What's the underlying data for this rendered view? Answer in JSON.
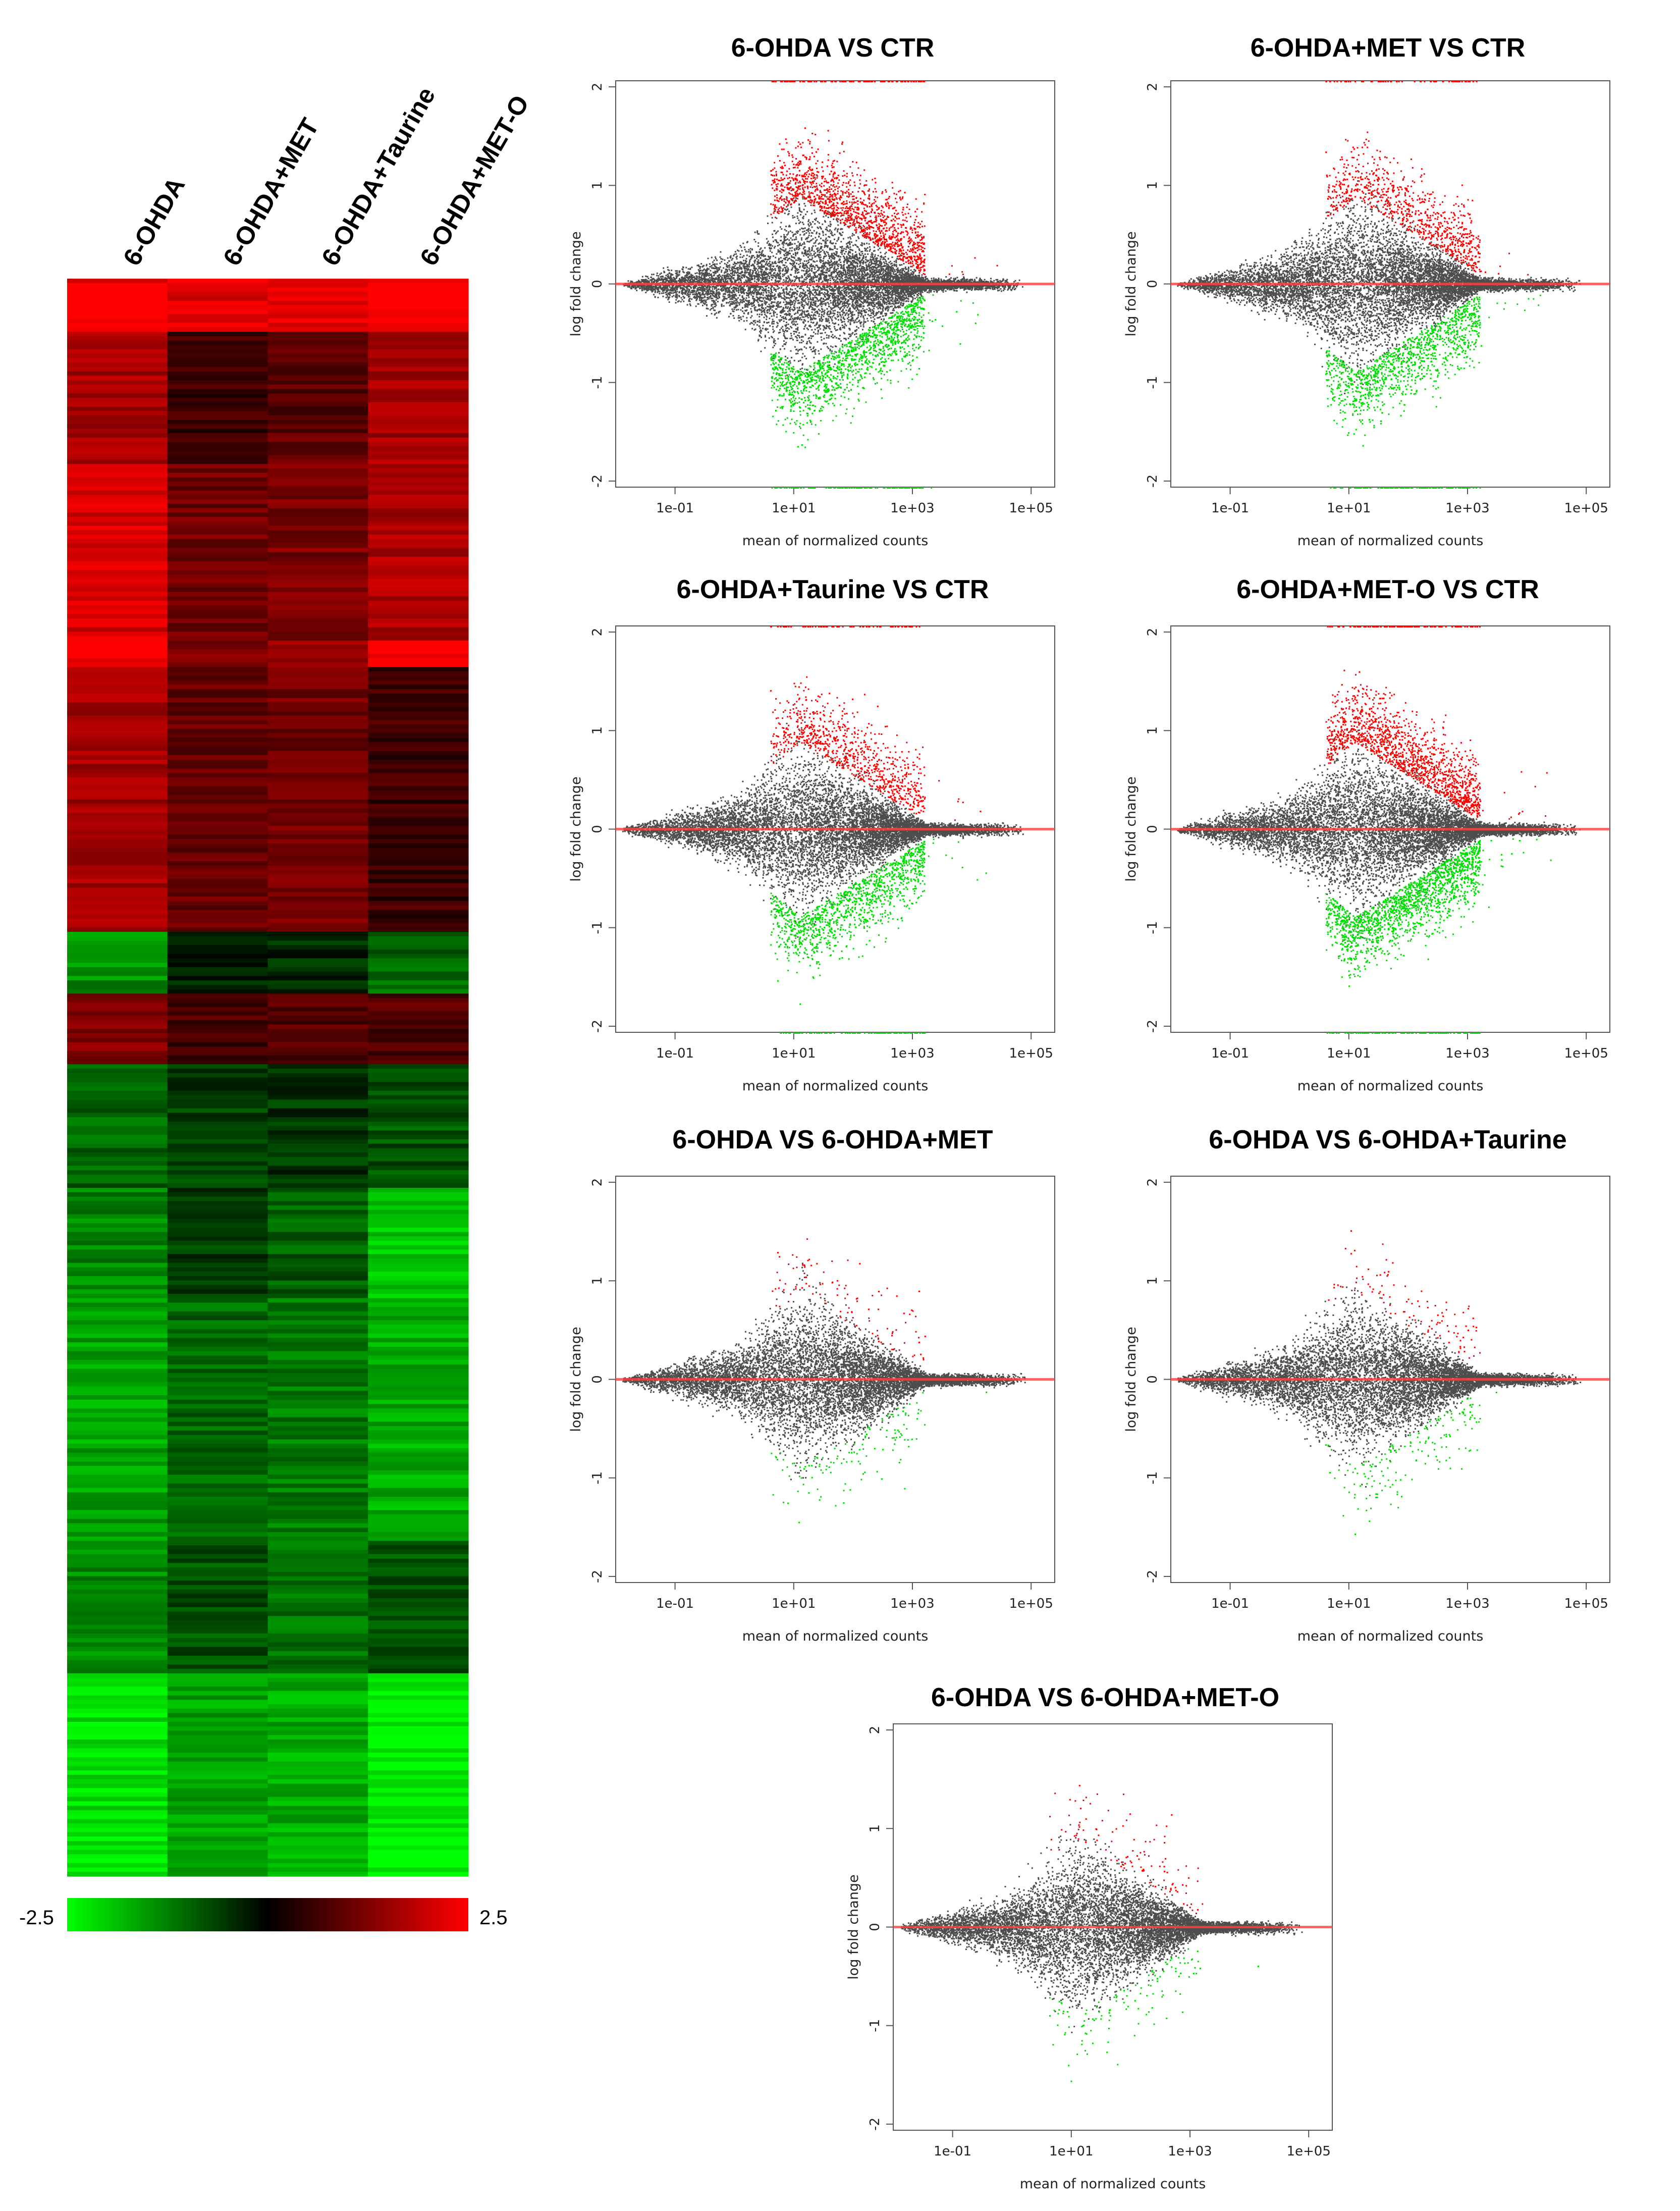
{
  "heatmap": {
    "columns": [
      "6-OHDA",
      "6-OHDA+MET",
      "6-OHDA+Taurine",
      "6-OHDA+MET-O"
    ],
    "scale_min_label": "-2.5",
    "scale_max_label": "2.5",
    "color_low": "#00ff00",
    "color_mid": "#000000",
    "color_high": "#ff0000",
    "row_blocks": [
      {
        "rows": 12,
        "values": [
          2.4,
          2.2,
          2.3,
          2.5
        ]
      },
      {
        "rows": 30,
        "values": [
          1.6,
          0.6,
          0.9,
          1.6
        ]
      },
      {
        "rows": 40,
        "values": [
          2.1,
          1.1,
          1.2,
          1.7
        ]
      },
      {
        "rows": 6,
        "values": [
          2.5,
          1.3,
          1.5,
          2.5
        ]
      },
      {
        "rows": 60,
        "values": [
          1.6,
          1.0,
          1.1,
          0.6
        ]
      },
      {
        "rows": 14,
        "values": [
          -1.4,
          -0.3,
          -0.4,
          -1.0
        ]
      },
      {
        "rows": 16,
        "values": [
          1.3,
          0.7,
          0.8,
          0.8
        ]
      },
      {
        "rows": 28,
        "values": [
          -1.0,
          -0.6,
          -0.5,
          -0.8
        ]
      },
      {
        "rows": 25,
        "values": [
          -1.3,
          -0.6,
          -0.9,
          -1.9
        ]
      },
      {
        "rows": 55,
        "values": [
          -1.6,
          -1.0,
          -1.2,
          -1.7
        ]
      },
      {
        "rows": 30,
        "values": [
          -1.4,
          -0.8,
          -1.1,
          -0.8
        ]
      },
      {
        "rows": 46,
        "values": [
          -2.2,
          -1.6,
          -1.7,
          -2.4
        ]
      }
    ]
  },
  "chart_data": [
    {
      "type": "scatter",
      "title": "6-OHDA VS CTR",
      "xlabel": "mean of normalized counts",
      "ylabel": "log fold change",
      "x_scale": "log10",
      "xlim": [
        0.01,
        250000
      ],
      "ylim": [
        -2,
        2
      ],
      "x_ticks": [
        "1e-01",
        "1e+01",
        "1e+03",
        "1e+05"
      ],
      "y_ticks": [
        "2",
        "1",
        "0",
        "-1",
        "-2"
      ],
      "reference_line_y": 0,
      "series": [
        {
          "name": "not significant",
          "color": "#4d4d4d",
          "count": 9000
        },
        {
          "name": "up-regulated",
          "color": "#ff0000",
          "count": 1500
        },
        {
          "name": "down-regulated",
          "color": "#00dd00",
          "count": 1500
        }
      ]
    },
    {
      "type": "scatter",
      "title": "6-OHDA+MET VS CTR",
      "xlabel": "mean of normalized counts",
      "ylabel": "log fold change",
      "x_scale": "log10",
      "xlim": [
        0.01,
        250000
      ],
      "ylim": [
        -2,
        2
      ],
      "x_ticks": [
        "1e-01",
        "1e+01",
        "1e+03",
        "1e+05"
      ],
      "y_ticks": [
        "2",
        "1",
        "0",
        "-1",
        "-2"
      ],
      "reference_line_y": 0,
      "series": [
        {
          "name": "not significant",
          "color": "#4d4d4d",
          "count": 9000
        },
        {
          "name": "up-regulated",
          "color": "#ff0000",
          "count": 900
        },
        {
          "name": "down-regulated",
          "color": "#00dd00",
          "count": 1300
        }
      ]
    },
    {
      "type": "scatter",
      "title": "6-OHDA+Taurine VS CTR",
      "xlabel": "mean of normalized counts",
      "ylabel": "log fold change",
      "x_scale": "log10",
      "xlim": [
        0.01,
        250000
      ],
      "ylim": [
        -2,
        2
      ],
      "x_ticks": [
        "1e-01",
        "1e+01",
        "1e+03",
        "1e+05"
      ],
      "y_ticks": [
        "2",
        "1",
        "0",
        "-1",
        "-2"
      ],
      "reference_line_y": 0,
      "series": [
        {
          "name": "not significant",
          "color": "#4d4d4d",
          "count": 9000
        },
        {
          "name": "up-regulated",
          "color": "#ff0000",
          "count": 900
        },
        {
          "name": "down-regulated",
          "color": "#00dd00",
          "count": 1300
        }
      ]
    },
    {
      "type": "scatter",
      "title": "6-OHDA+MET-O VS CTR",
      "xlabel": "mean of normalized counts",
      "ylabel": "log fold change",
      "x_scale": "log10",
      "xlim": [
        0.01,
        250000
      ],
      "ylim": [
        -2,
        2
      ],
      "x_ticks": [
        "1e-01",
        "1e+01",
        "1e+03",
        "1e+05"
      ],
      "y_ticks": [
        "2",
        "1",
        "0",
        "-1",
        "-2"
      ],
      "reference_line_y": 0,
      "series": [
        {
          "name": "not significant",
          "color": "#4d4d4d",
          "count": 9000
        },
        {
          "name": "up-regulated",
          "color": "#ff0000",
          "count": 1600
        },
        {
          "name": "down-regulated",
          "color": "#00dd00",
          "count": 1800
        }
      ]
    },
    {
      "type": "scatter",
      "title": "6-OHDA VS 6-OHDA+MET",
      "xlabel": "mean of normalized counts",
      "ylabel": "log fold change",
      "x_scale": "log10",
      "xlim": [
        0.01,
        250000
      ],
      "ylim": [
        -2,
        2
      ],
      "x_ticks": [
        "1e-01",
        "1e+01",
        "1e+03",
        "1e+05"
      ],
      "y_ticks": [
        "2",
        "1",
        "0",
        "-1",
        "-2"
      ],
      "reference_line_y": 0,
      "series": [
        {
          "name": "not significant",
          "color": "#4d4d4d",
          "count": 9000
        },
        {
          "name": "up-regulated",
          "color": "#ff0000",
          "count": 110
        },
        {
          "name": "down-regulated",
          "color": "#00dd00",
          "count": 130
        }
      ]
    },
    {
      "type": "scatter",
      "title": "6-OHDA VS 6-OHDA+Taurine",
      "xlabel": "mean of normalized counts",
      "ylabel": "log fold change",
      "x_scale": "log10",
      "xlim": [
        0.01,
        250000
      ],
      "ylim": [
        -2,
        2
      ],
      "x_ticks": [
        "1e-01",
        "1e+01",
        "1e+03",
        "1e+05"
      ],
      "y_ticks": [
        "2",
        "1",
        "0",
        "-1",
        "-2"
      ],
      "reference_line_y": 0,
      "series": [
        {
          "name": "not significant",
          "color": "#4d4d4d",
          "count": 9000
        },
        {
          "name": "up-regulated",
          "color": "#ff0000",
          "count": 110
        },
        {
          "name": "down-regulated",
          "color": "#00dd00",
          "count": 170
        }
      ]
    },
    {
      "type": "scatter",
      "title": "6-OHDA VS 6-OHDA+MET-O",
      "xlabel": "mean of normalized counts",
      "ylabel": "log fold change",
      "x_scale": "log10",
      "xlim": [
        0.01,
        250000
      ],
      "ylim": [
        -2,
        2
      ],
      "x_ticks": [
        "1e-01",
        "1e+01",
        "1e+03",
        "1e+05"
      ],
      "y_ticks": [
        "2",
        "1",
        "0",
        "-1",
        "-2"
      ],
      "reference_line_y": 0,
      "series": [
        {
          "name": "not significant",
          "color": "#4d4d4d",
          "count": 9000
        },
        {
          "name": "up-regulated",
          "color": "#ff0000",
          "count": 110
        },
        {
          "name": "down-regulated",
          "color": "#00dd00",
          "count": 120
        }
      ]
    }
  ]
}
